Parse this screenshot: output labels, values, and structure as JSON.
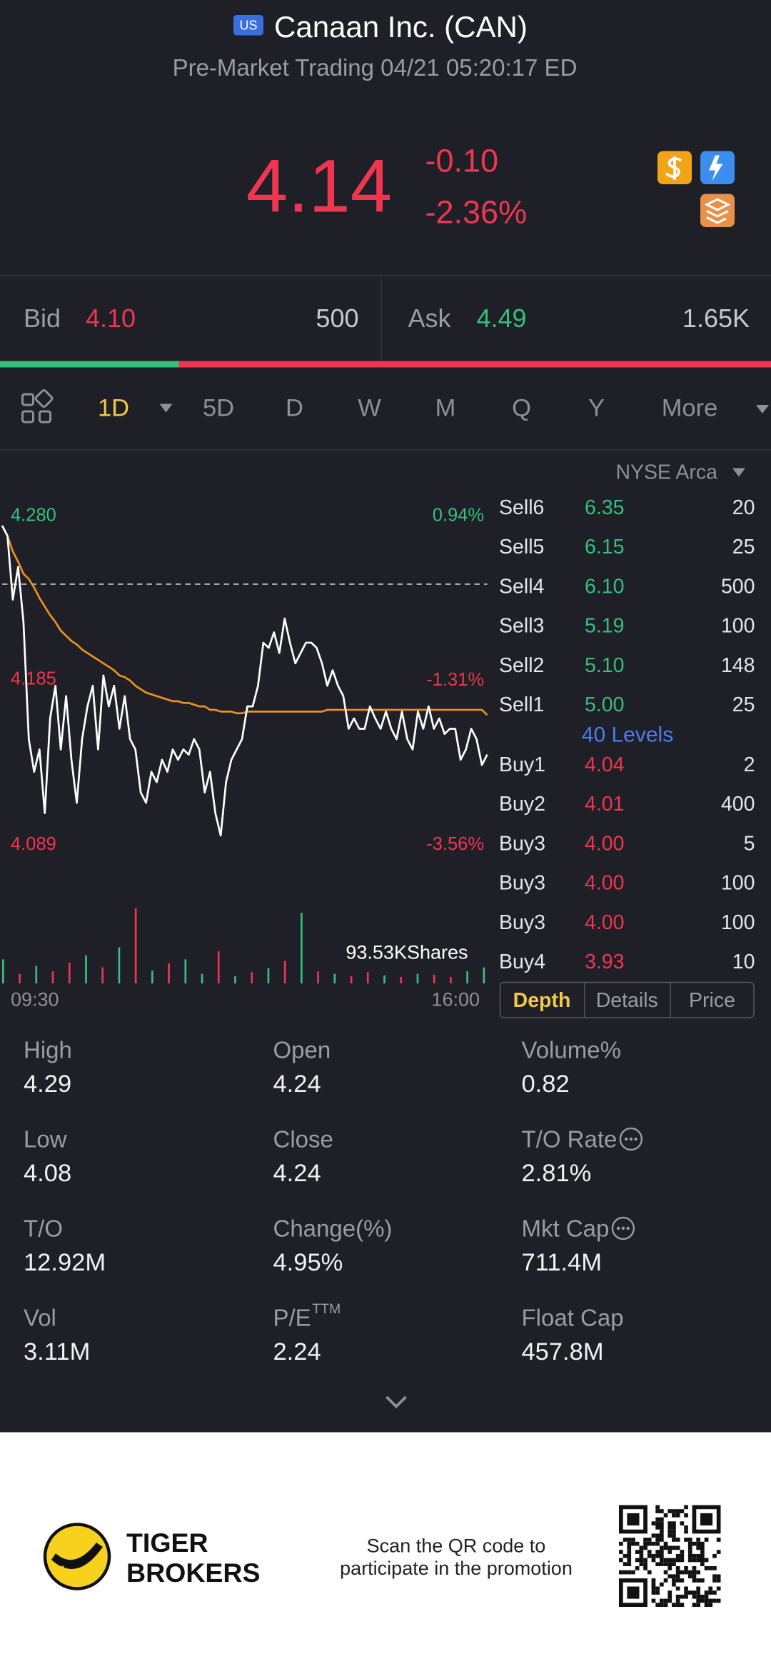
{
  "header": {
    "badge": "US",
    "title": "Canaan Inc. (CAN)",
    "subtitle": "Pre-Market Trading 04/21 05:20:17 ED"
  },
  "quote": {
    "price": "4.14",
    "change": "-0.10",
    "change_percent": "-2.36%"
  },
  "bid_ask": {
    "bid": {
      "label": "Bid",
      "price": "4.10",
      "size": "500"
    },
    "ask": {
      "label": "Ask",
      "price": "4.49",
      "size": "1.65K"
    }
  },
  "periods": {
    "items": [
      "1D",
      "5D",
      "D",
      "W",
      "M",
      "Q",
      "Y",
      "More"
    ],
    "active": 0
  },
  "chart_data": {
    "type": "line",
    "exchange": "NYSE Arca",
    "ylim": [
      4.089,
      4.28
    ],
    "yticks": [
      {
        "value": 4.28,
        "label": "4.280"
      },
      4.185,
      4.089
    ],
    "y2lim": [
      -3.56,
      0.94
    ],
    "y2ticks": [
      {
        "value": 0.94,
        "label": "0.94%"
      },
      {
        "value": -1.31,
        "label": "-1.31%"
      },
      {
        "value": -3.56,
        "label": "-3.56%"
      }
    ],
    "reference_line": 4.24,
    "up_color": "#35c07f",
    "down_color": "#f0364f",
    "x_labels": [
      "09:30",
      "16:00"
    ],
    "series": [
      {
        "color": "#ffffff",
        "values": [
          4.274,
          4.268,
          4.231,
          4.25,
          4.218,
          4.15,
          4.131,
          4.144,
          4.107,
          4.162,
          4.181,
          4.144,
          4.175,
          4.138,
          4.113,
          4.15,
          4.169,
          4.181,
          4.144,
          4.187,
          4.169,
          4.181,
          4.156,
          4.175,
          4.15,
          4.144,
          4.119,
          4.113,
          4.131,
          4.125,
          4.138,
          4.131,
          4.144,
          4.138,
          4.144,
          4.141,
          4.15,
          4.144,
          4.119,
          4.131,
          4.107,
          4.094,
          4.125,
          4.138,
          4.144,
          4.15,
          4.169,
          4.169,
          4.181,
          4.206,
          4.203,
          4.212,
          4.2,
          4.22,
          4.206,
          4.194,
          4.2,
          4.206,
          4.206,
          4.203,
          4.194,
          4.181,
          4.19,
          4.181,
          4.175,
          4.156,
          4.162,
          4.156,
          4.156,
          4.169,
          4.162,
          4.156,
          4.166,
          4.156,
          4.15,
          4.166,
          4.15,
          4.144,
          4.166,
          4.156,
          4.169,
          4.156,
          4.162,
          4.153,
          4.156,
          4.156,
          4.138,
          4.144,
          4.156,
          4.15,
          4.135,
          4.141
        ]
      },
      {
        "color": "#f0901e",
        "values": [
          4.274,
          4.268,
          4.259,
          4.253,
          4.246,
          4.243,
          4.238,
          4.232,
          4.227,
          4.222,
          4.218,
          4.213,
          4.21,
          4.207,
          4.205,
          4.202,
          4.2,
          4.198,
          4.196,
          4.194,
          4.192,
          4.19,
          4.187,
          4.186,
          4.184,
          4.181,
          4.179,
          4.177,
          4.176,
          4.175,
          4.174,
          4.173,
          4.172,
          4.172,
          4.171,
          4.171,
          4.17,
          4.169,
          4.169,
          4.167,
          4.167,
          4.166,
          4.166,
          4.166,
          4.165,
          4.165,
          4.166,
          4.166,
          4.166,
          4.166,
          4.166,
          4.166,
          4.166,
          4.166,
          4.166,
          4.166,
          4.166,
          4.166,
          4.166,
          4.166,
          4.166,
          4.167,
          4.167,
          4.167,
          4.167,
          4.167,
          4.167,
          4.167,
          4.167,
          4.167,
          4.167,
          4.167,
          4.167,
          4.167,
          4.167,
          4.167,
          4.167,
          4.167,
          4.167,
          4.167,
          4.167,
          4.167,
          4.167,
          4.167,
          4.167,
          4.167,
          4.167,
          4.167,
          4.167,
          4.167,
          4.167,
          4.164
        ]
      }
    ],
    "volume": {
      "label": "93.53KShares",
      "ylim": [
        0,
        93530
      ],
      "values": [
        30000,
        12000,
        22000,
        15000,
        26000,
        35000,
        20000,
        45000,
        93530,
        16000,
        25000,
        30000,
        12000,
        40000,
        9000,
        14000,
        19000,
        28000,
        88000,
        15000,
        12000,
        9000,
        14000,
        10000,
        8000,
        12000,
        11000,
        8000,
        15000,
        20000
      ],
      "colors": [
        "#35c07f",
        "#f0364f",
        "#35c07f",
        "#f0364f",
        "#f0364f",
        "#35c07f",
        "#f0364f",
        "#35c07f",
        "#f0364f",
        "#35c07f",
        "#f0364f",
        "#35c07f",
        "#35c07f",
        "#f0364f",
        "#35c07f",
        "#f0364f",
        "#35c07f",
        "#f0364f",
        "#35c07f",
        "#f0364f",
        "#35c07f",
        "#f0364f",
        "#f0364f",
        "#35c07f",
        "#f0364f",
        "#35c07f",
        "#f0364f",
        "#f0364f",
        "#35c07f",
        "#35c07f"
      ]
    }
  },
  "order_book": {
    "sell": [
      {
        "side": "Sell6",
        "price": "6.35",
        "size": "20"
      },
      {
        "side": "Sell5",
        "price": "6.15",
        "size": "25"
      },
      {
        "side": "Sell4",
        "price": "6.10",
        "size": "500"
      },
      {
        "side": "Sell3",
        "price": "5.19",
        "size": "100"
      },
      {
        "side": "Sell2",
        "price": "5.10",
        "size": "148"
      },
      {
        "side": "Sell1",
        "price": "5.00",
        "size": "25"
      }
    ],
    "levels": "40 Levels",
    "buy": [
      {
        "side": "Buy1",
        "price": "4.04",
        "size": "2"
      },
      {
        "side": "Buy2",
        "price": "4.01",
        "size": "400"
      },
      {
        "side": "Buy3",
        "price": "4.00",
        "size": "5"
      },
      {
        "side": "Buy3",
        "price": "4.00",
        "size": "100"
      },
      {
        "side": "Buy3",
        "price": "4.00",
        "size": "100"
      },
      {
        "side": "Buy4",
        "price": "3.93",
        "size": "10"
      }
    ],
    "tabs": [
      "Depth",
      "Details",
      "Price"
    ],
    "active_tab": 0
  },
  "stats": [
    {
      "label": "High",
      "value": "4.29"
    },
    {
      "label": "Open",
      "value": "4.24"
    },
    {
      "label": "Volume%",
      "value": "0.82"
    },
    {
      "label": "Low",
      "value": "4.08"
    },
    {
      "label": "Close",
      "value": "4.24"
    },
    {
      "label": "T/O Rate",
      "value": "2.81%",
      "info": true
    },
    {
      "label": "T/O",
      "value": "12.92M"
    },
    {
      "label": "Change(%)",
      "value": "4.95%"
    },
    {
      "label": "Mkt Cap",
      "value": "711.4M",
      "info": true
    },
    {
      "label": "Vol",
      "value": "3.11M"
    },
    {
      "label": "P/E",
      "superscript": "TTM",
      "value": "2.24"
    },
    {
      "label": "Float Cap",
      "value": "457.8M"
    }
  ],
  "footer": {
    "brand": [
      "TIGER",
      "BROKERS"
    ],
    "promo": [
      "Scan the QR code to",
      "participate in the promotion"
    ]
  }
}
